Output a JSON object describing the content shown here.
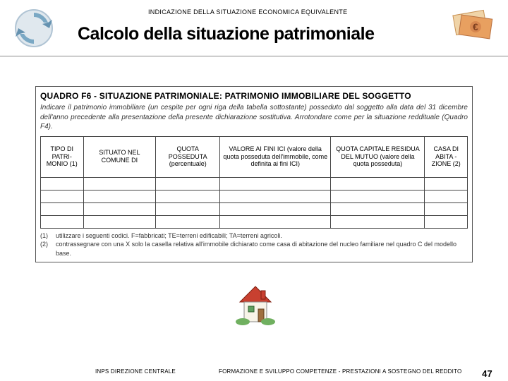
{
  "header": {
    "subtitle": "INDICAZIONE DELLA SITUAZIONE ECONOMICA EQUIVALENTE",
    "title": "Calcolo della situazione patrimoniale"
  },
  "quadro": {
    "title": "QUADRO F6 - SITUAZIONE PATRIMONIALE: PATRIMONIO IMMOBILIARE DEL SOGGETTO",
    "description": "Indicare il patrimonio immobiliare (un cespite per ogni riga della tabella sottostante) posseduto dal soggetto alla data del 31 dicembre dell'anno precedente alla presentazione della presente dichiarazione sostitutiva. Arrotondare come per la situazione reddituale (Quadro F4).",
    "columns": [
      "TIPO DI PATRI-MONIO (1)",
      "SITUATO NEL COMUNE DI",
      "QUOTA POSSEDUTA (percentuale)",
      "VALORE AI FINI ICI (valore della quota posseduta dell'immobile, come definita ai fini ICI)",
      "QUOTA CAPITALE RESIDUA DEL MUTUO (valore della quota posseduta)",
      "CASA DI ABITA - ZIONE (2)"
    ],
    "col_widths": [
      "10%",
      "17%",
      "15%",
      "26%",
      "22%",
      "10%"
    ],
    "data_rows": 4,
    "notes": [
      {
        "num": "(1)",
        "text": "utilizzare i seguenti codici. F=fabbricati; TE=terreni edificabili; TA=terreni agricoli."
      },
      {
        "num": "(2)",
        "text": "contrassegnare con una X solo la casella relativa all'immobile dichiarato come casa di abitazione del nucleo familiare nel quadro C del modello base."
      }
    ]
  },
  "footer": {
    "left": "INPS  DIREZIONE CENTRALE",
    "center": "FORMAZIONE E SVILUPPO COMPETENZE  -   PRESTAZIONI A SOSTEGNO DEL REDDITO",
    "page": "47"
  },
  "colors": {
    "logo_arrow": "#7aa8c4",
    "logo_ring": "#d0dde6",
    "euro_bg": "#e8c090",
    "border": "#555555"
  }
}
